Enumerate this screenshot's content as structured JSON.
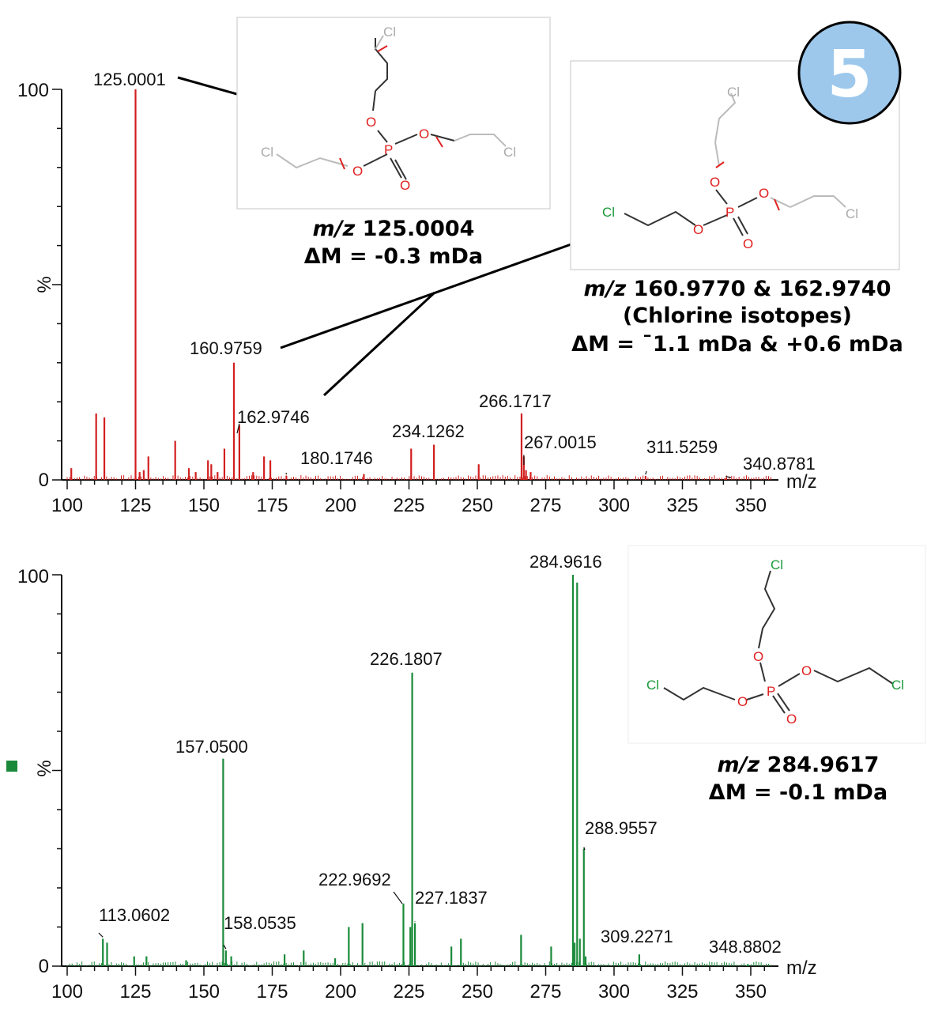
{
  "badge": "5",
  "chart_data": [
    {
      "type": "bar",
      "name": "fragment-spectrum",
      "color": "#d21f1f",
      "xlabel": "m/z",
      "ylabel": "%",
      "xlim": [
        100,
        360
      ],
      "ylim": [
        0,
        100
      ],
      "xticks": [
        "100",
        "125",
        "150",
        "175",
        "200",
        "225",
        "250",
        "275",
        "300",
        "325",
        "350"
      ],
      "yticks": [
        "0",
        "100"
      ],
      "ymid": "%",
      "peaks": [
        {
          "x": 125.0001,
          "y": 100,
          "label": "125.0001"
        },
        {
          "x": 160.9759,
          "y": 30,
          "label": "160.9759"
        },
        {
          "x": 162.9746,
          "y": 14,
          "label": "162.9746"
        },
        {
          "x": 180.1746,
          "y": 1,
          "label": "180.1746"
        },
        {
          "x": 234.1262,
          "y": 9,
          "label": "234.1262"
        },
        {
          "x": 266.1717,
          "y": 17,
          "label": "266.1717"
        },
        {
          "x": 267.0015,
          "y": 6,
          "label": "267.0015"
        },
        {
          "x": 311.5259,
          "y": 1,
          "label": "311.5259"
        },
        {
          "x": 340.8781,
          "y": 0.5,
          "label": "340.8781"
        },
        {
          "x": 101.5,
          "y": 3
        },
        {
          "x": 110.6,
          "y": 17
        },
        {
          "x": 113.6,
          "y": 16
        },
        {
          "x": 126.5,
          "y": 2
        },
        {
          "x": 128.0,
          "y": 2.5
        },
        {
          "x": 129.7,
          "y": 6
        },
        {
          "x": 139.5,
          "y": 10
        },
        {
          "x": 144.5,
          "y": 3
        },
        {
          "x": 147.0,
          "y": 2
        },
        {
          "x": 151.5,
          "y": 5
        },
        {
          "x": 152.7,
          "y": 4
        },
        {
          "x": 155.0,
          "y": 2
        },
        {
          "x": 157.5,
          "y": 8
        },
        {
          "x": 168.0,
          "y": 2
        },
        {
          "x": 172.0,
          "y": 6
        },
        {
          "x": 174.3,
          "y": 5
        },
        {
          "x": 208.5,
          "y": 1.5
        },
        {
          "x": 225.8,
          "y": 8
        },
        {
          "x": 250.5,
          "y": 4
        },
        {
          "x": 267.8,
          "y": 2.5
        },
        {
          "x": 269.5,
          "y": 2
        }
      ],
      "annotation": {
        "mz": "m/z",
        "value": "125.0004",
        "delta": "ΔM = -0.3 mDa"
      },
      "annotation2": {
        "mz": "m/z",
        "value": "160.9770 & 162.9740",
        "line2": "(Chlorine isotopes)",
        "delta": "ΔM = ¯1.1 mDa & +0.6 mDa"
      }
    },
    {
      "type": "bar",
      "name": "precursor-spectrum",
      "color": "#1a8a3a",
      "xlabel": "m/z",
      "ylabel": "%",
      "xlim": [
        100,
        360
      ],
      "ylim": [
        0,
        100
      ],
      "xticks": [
        "100",
        "125",
        "150",
        "175",
        "200",
        "225",
        "250",
        "275",
        "300",
        "325",
        "350"
      ],
      "yticks": [
        "0",
        "100"
      ],
      "peaks": [
        {
          "x": 113.0602,
          "y": 7,
          "label": "113.0602"
        },
        {
          "x": 157.05,
          "y": 53,
          "label": "157.0500"
        },
        {
          "x": 158.0535,
          "y": 4,
          "label": "158.0535"
        },
        {
          "x": 222.9692,
          "y": 16,
          "label": "222.9692"
        },
        {
          "x": 226.1807,
          "y": 75,
          "label": "226.1807"
        },
        {
          "x": 227.1837,
          "y": 11,
          "label": "227.1837"
        },
        {
          "x": 284.9616,
          "y": 100,
          "label": "284.9616"
        },
        {
          "x": 288.9557,
          "y": 30,
          "label": "288.9557"
        },
        {
          "x": 309.2271,
          "y": 3,
          "label": "309.2271"
        },
        {
          "x": 348.8802,
          "y": 0.5,
          "label": "348.8802"
        },
        {
          "x": 114.6,
          "y": 6
        },
        {
          "x": 124.5,
          "y": 2.5
        },
        {
          "x": 129.0,
          "y": 2.5
        },
        {
          "x": 143.5,
          "y": 1.5
        },
        {
          "x": 160.0,
          "y": 2.5
        },
        {
          "x": 179.5,
          "y": 3
        },
        {
          "x": 186.5,
          "y": 4
        },
        {
          "x": 198.0,
          "y": 2
        },
        {
          "x": 203.0,
          "y": 10
        },
        {
          "x": 208.0,
          "y": 11
        },
        {
          "x": 225.5,
          "y": 10
        },
        {
          "x": 240.5,
          "y": 5
        },
        {
          "x": 244.0,
          "y": 7
        },
        {
          "x": 266.0,
          "y": 8
        },
        {
          "x": 277.0,
          "y": 5
        },
        {
          "x": 285.6,
          "y": 6
        },
        {
          "x": 286.5,
          "y": 98
        },
        {
          "x": 287.5,
          "y": 7
        },
        {
          "x": 289.6,
          "y": 2.5
        }
      ],
      "annotation": {
        "mz": "m/z",
        "value": "284.9617",
        "delta": "ΔM = -0.1 mDa"
      }
    }
  ],
  "atoms": {
    "cl": "Cl",
    "o": "O",
    "p": "P"
  }
}
